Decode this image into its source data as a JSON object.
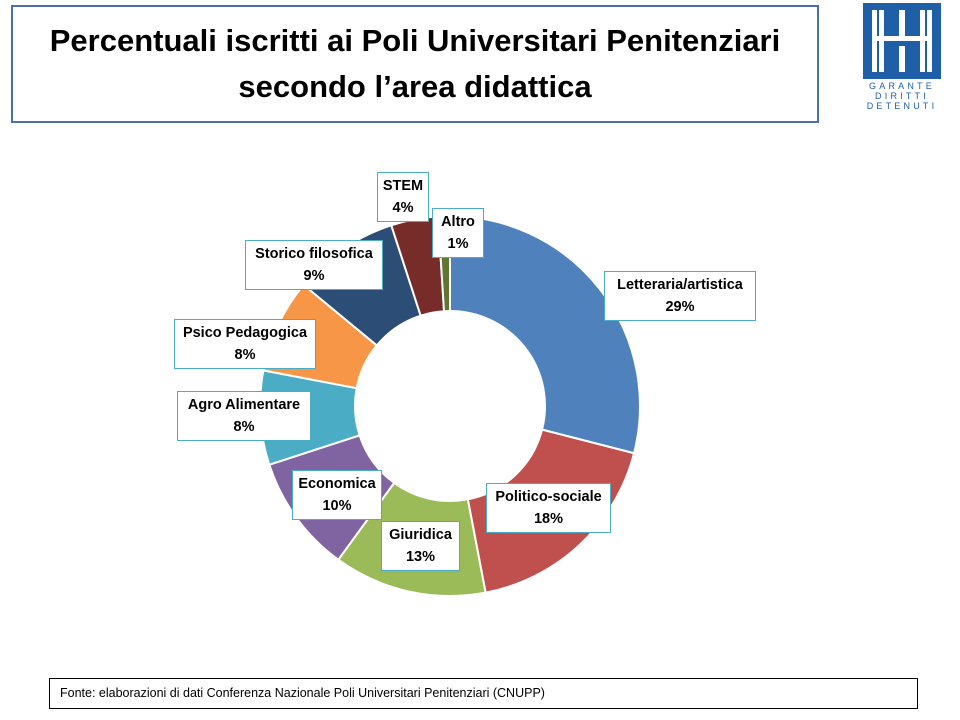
{
  "title": {
    "line1": "Percentuali iscritti ai Poli Universitari Penitenziari",
    "line2": "secondo l’area didattica"
  },
  "logo": {
    "icon": "garante-logo-icon",
    "brand_color": "#1f5fa8",
    "text": [
      "GARANTE",
      "DIRITTI",
      "DETENUTI"
    ]
  },
  "chart_data": {
    "type": "pie",
    "variant": "doughnut",
    "title": "Percentuali iscritti ai Poli Universitari Penitenziari secondo l’area didattica",
    "unit": "%",
    "slices": [
      {
        "label": "Letteraria/artistica",
        "value": 29,
        "display": "29%",
        "color": "#4f81bd"
      },
      {
        "label": "Politico-sociale",
        "value": 18,
        "display": "18%",
        "color": "#c0504d"
      },
      {
        "label": "Giuridica",
        "value": 13,
        "display": "13%",
        "color": "#9bbb59"
      },
      {
        "label": "Economica",
        "value": 10,
        "display": "10%",
        "color": "#8064a2"
      },
      {
        "label": "Agro Alimentare",
        "value": 8,
        "display": "8%",
        "color": "#4bacc6"
      },
      {
        "label": "Psico Pedagogica",
        "value": 8,
        "display": "8%",
        "color": "#f79646"
      },
      {
        "label": "Storico filosofica",
        "value": 9,
        "display": "9%",
        "color": "#2c4d75"
      },
      {
        "label": "STEM",
        "value": 4,
        "display": "4%",
        "color": "#772c2a"
      },
      {
        "label": "Altro",
        "value": 1,
        "display": "1%",
        "color": "#5f7530"
      }
    ]
  },
  "source": "Fonte: elaborazioni di dati  Conferenza Nazionale Poli Universitari Penitenziari (CNUPP)"
}
